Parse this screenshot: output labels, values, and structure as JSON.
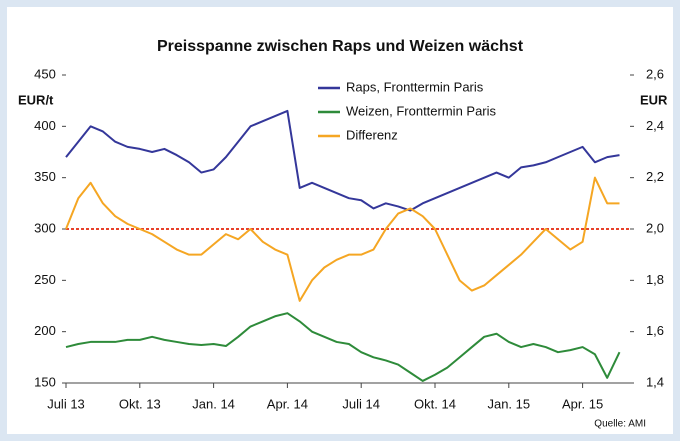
{
  "chart_data": {
    "type": "line",
    "title": "Preisspanne zwischen Raps und Weizen wächst",
    "ylabel": "EUR/t",
    "y2label": "EUR",
    "source": "Quelle: AMI",
    "categories": [
      "Juli 13",
      null,
      null,
      null,
      null,
      null,
      "Okt. 13",
      null,
      null,
      null,
      null,
      null,
      "Jan. 14",
      null,
      null,
      null,
      null,
      null,
      "Apr. 14",
      null,
      null,
      null,
      null,
      null,
      "Juli 14",
      null,
      null,
      null,
      null,
      null,
      "Okt. 14",
      null,
      null,
      null,
      null,
      null,
      "Jan. 15",
      null,
      null,
      null,
      null,
      null,
      "Apr. 15",
      null,
      null,
      null
    ],
    "series": [
      {
        "name": "Raps, Fronttermin Paris",
        "color": "#34379a",
        "values": [
          370,
          385,
          400,
          395,
          385,
          380,
          378,
          375,
          378,
          372,
          365,
          355,
          358,
          370,
          385,
          400,
          405,
          410,
          415,
          340,
          345,
          340,
          335,
          330,
          328,
          320,
          325,
          322,
          318,
          325,
          330,
          335,
          340,
          345,
          350,
          355,
          350,
          360,
          362,
          365,
          370,
          375,
          380,
          365,
          370,
          372
        ]
      },
      {
        "name": "Weizen, Fronttermin Paris",
        "color": "#2e8b3a",
        "values": [
          185,
          188,
          190,
          190,
          190,
          192,
          192,
          195,
          192,
          190,
          188,
          187,
          188,
          186,
          195,
          205,
          210,
          215,
          218,
          210,
          200,
          195,
          190,
          188,
          180,
          175,
          172,
          168,
          160,
          152,
          158,
          165,
          175,
          185,
          195,
          198,
          190,
          185,
          188,
          185,
          180,
          182,
          185,
          178,
          155,
          180
        ]
      },
      {
        "name": "Differenz",
        "color": "#f5a623",
        "axis": "y2",
        "values": [
          2.0,
          2.12,
          2.18,
          2.1,
          2.05,
          2.02,
          2.0,
          1.98,
          1.95,
          1.92,
          1.9,
          1.9,
          1.94,
          1.98,
          1.96,
          2.0,
          1.95,
          1.92,
          1.9,
          1.72,
          1.8,
          1.85,
          1.88,
          1.9,
          1.9,
          1.92,
          2.0,
          2.06,
          2.08,
          2.05,
          2.0,
          1.9,
          1.8,
          1.76,
          1.78,
          1.82,
          1.86,
          1.9,
          1.95,
          2.0,
          1.96,
          1.92,
          1.95,
          2.2,
          2.1,
          2.1
        ]
      }
    ],
    "hline": {
      "value": 300,
      "color": "#e8412b"
    },
    "ylim": [
      150,
      450
    ],
    "yticks": [
      150,
      200,
      250,
      300,
      350,
      400,
      450
    ],
    "y2lim": [
      1.4,
      2.6
    ],
    "y2ticks": [
      {
        "value": 1.4,
        "label": "1,4"
      },
      {
        "value": 1.6,
        "label": "1,6"
      },
      {
        "value": 1.8,
        "label": "1,8"
      },
      {
        "value": 2.0,
        "label": "2,0"
      },
      {
        "value": 2.2,
        "label": "2,2"
      },
      {
        "value": 2.4,
        "label": "2,4"
      },
      {
        "value": 2.6,
        "label": "2,6"
      }
    ],
    "legend": "top"
  }
}
